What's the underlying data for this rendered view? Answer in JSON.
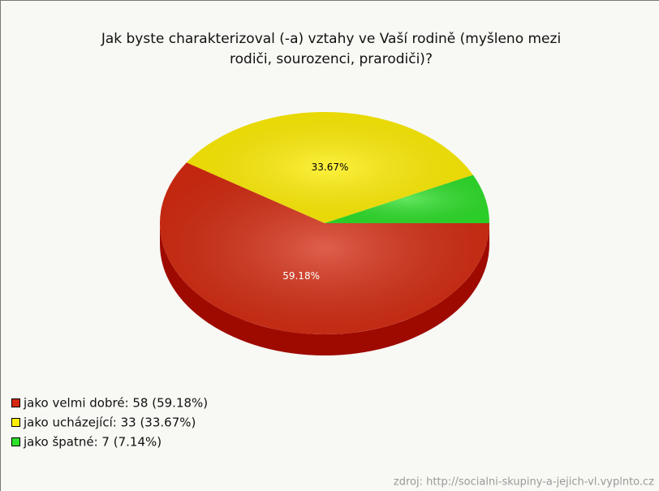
{
  "chart_data": {
    "type": "pie3d",
    "title": [
      "Jak byste charakterizoval (-a) vztahy ve Vaší rodině (myšleno mezi",
      "rodiči, sourozenci, prarodiči)?"
    ],
    "categories": [
      "jako velmi dobré",
      "jako ucházející",
      "jako špatné"
    ],
    "values": [
      59.18,
      33.67,
      7.14
    ],
    "value_labels": [
      "59.18%",
      "33.67%",
      null
    ],
    "value_label_colors": [
      "#ffffff",
      "#000000",
      null
    ],
    "colors": [
      "#d42a10",
      "#ffee00",
      "#2ee02a"
    ],
    "side_colors": [
      "#9e0a00",
      "#b8a800",
      "#18901a"
    ],
    "legend": [
      "jako velmi dobré: 58 (59.18%)",
      "jako ucházející: 33 (33.67%)",
      "jako špatné: 7 (7.14%)"
    ],
    "source": "zdroj: http://socialni-skupiny-a-jejich-vl.vyplnto.cz"
  }
}
